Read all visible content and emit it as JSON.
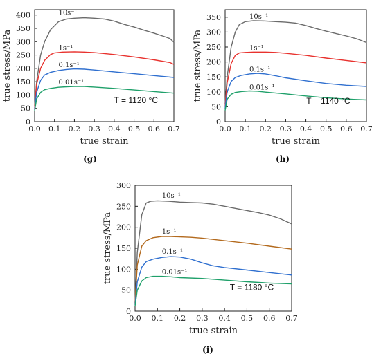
{
  "chart_data": [
    {
      "type": "line",
      "panel_label": "(g)",
      "temperature_label": "T = 1120 °C",
      "xlabel": "true strain",
      "ylabel": "true stress/MPa",
      "xlim": [
        0.0,
        0.7
      ],
      "ylim": [
        0,
        420
      ],
      "xticks": [
        "0.0",
        "0.1",
        "0.2",
        "0.3",
        "0.4",
        "0.5",
        "0.6",
        "0.7"
      ],
      "yticks": [
        "0",
        "50",
        "100",
        "150",
        "200",
        "250",
        "300",
        "350",
        "400"
      ],
      "series": [
        {
          "name": "10s⁻¹",
          "color": "#6b6b6b",
          "x": [
            0.0,
            0.01,
            0.03,
            0.05,
            0.08,
            0.12,
            0.16,
            0.2,
            0.25,
            0.3,
            0.35,
            0.4,
            0.45,
            0.5,
            0.55,
            0.6,
            0.65,
            0.68,
            0.7
          ],
          "y": [
            60,
            150,
            250,
            300,
            345,
            375,
            385,
            388,
            390,
            388,
            385,
            377,
            365,
            355,
            343,
            332,
            320,
            312,
            298
          ]
        },
        {
          "name": "1s⁻¹",
          "color": "#e8322e",
          "x": [
            0.0,
            0.01,
            0.03,
            0.05,
            0.08,
            0.1,
            0.14,
            0.2,
            0.25,
            0.3,
            0.4,
            0.5,
            0.6,
            0.68,
            0.7
          ],
          "y": [
            50,
            140,
            200,
            230,
            252,
            258,
            261,
            262,
            261,
            259,
            252,
            243,
            232,
            222,
            215
          ]
        },
        {
          "name": "0.1s⁻¹",
          "color": "#2f6fcf",
          "x": [
            0.0,
            0.01,
            0.03,
            0.05,
            0.08,
            0.12,
            0.16,
            0.2,
            0.25,
            0.3,
            0.4,
            0.5,
            0.6,
            0.7
          ],
          "y": [
            45,
            110,
            155,
            175,
            185,
            192,
            196,
            198,
            197,
            194,
            187,
            180,
            173,
            166
          ]
        },
        {
          "name": "0.01s⁻¹",
          "color": "#1fa06a",
          "x": [
            0.0,
            0.01,
            0.03,
            0.05,
            0.08,
            0.12,
            0.16,
            0.2,
            0.25,
            0.3,
            0.4,
            0.5,
            0.6,
            0.7
          ],
          "y": [
            40,
            85,
            110,
            120,
            125,
            129,
            131,
            132,
            132,
            130,
            125,
            119,
            113,
            107
          ]
        }
      ]
    },
    {
      "type": "line",
      "panel_label": "(h)",
      "temperature_label": "T = 1140 °C",
      "xlabel": "true strain",
      "ylabel": "true stress/MPa",
      "xlim": [
        0.0,
        0.7
      ],
      "ylim": [
        0,
        375
      ],
      "xticks": [
        "0.0",
        "0.1",
        "0.2",
        "0.3",
        "0.4",
        "0.5",
        "0.6",
        "0.7"
      ],
      "yticks": [
        "0",
        "50",
        "100",
        "150",
        "200",
        "250",
        "300",
        "350"
      ],
      "series": [
        {
          "name": "10s⁻¹",
          "color": "#6b6b6b",
          "x": [
            0.0,
            0.01,
            0.03,
            0.05,
            0.07,
            0.1,
            0.14,
            0.2,
            0.25,
            0.3,
            0.35,
            0.4,
            0.45,
            0.5,
            0.55,
            0.6,
            0.65,
            0.7
          ],
          "y": [
            60,
            150,
            250,
            300,
            325,
            335,
            338,
            337,
            335,
            333,
            330,
            322,
            312,
            303,
            295,
            287,
            278,
            265
          ]
        },
        {
          "name": "1s⁻¹",
          "color": "#e8322e",
          "x": [
            0.0,
            0.01,
            0.03,
            0.05,
            0.07,
            0.1,
            0.14,
            0.2,
            0.25,
            0.3,
            0.4,
            0.5,
            0.6,
            0.7
          ],
          "y": [
            50,
            130,
            195,
            222,
            230,
            232,
            233,
            233,
            232,
            229,
            222,
            213,
            205,
            197
          ]
        },
        {
          "name": "0.1s⁻¹",
          "color": "#2f6fcf",
          "x": [
            0.0,
            0.01,
            0.03,
            0.05,
            0.08,
            0.12,
            0.16,
            0.2,
            0.25,
            0.3,
            0.4,
            0.5,
            0.6,
            0.7
          ],
          "y": [
            45,
            100,
            135,
            148,
            155,
            160,
            162,
            160,
            154,
            147,
            137,
            128,
            122,
            118
          ]
        },
        {
          "name": "0.01s⁻¹",
          "color": "#1fa06a",
          "x": [
            0.0,
            0.01,
            0.03,
            0.05,
            0.08,
            0.12,
            0.16,
            0.2,
            0.3,
            0.4,
            0.5,
            0.6,
            0.7
          ],
          "y": [
            38,
            75,
            92,
            98,
            101,
            103,
            102,
            99,
            93,
            86,
            80,
            76,
            73
          ]
        }
      ]
    },
    {
      "type": "line",
      "panel_label": "(i)",
      "temperature_label": "T = 1180 °C",
      "xlabel": "true strain",
      "ylabel": "true stress/MPa",
      "xlim": [
        0.0,
        0.7
      ],
      "ylim": [
        0,
        300
      ],
      "xticks": [
        "0.0",
        "0.1",
        "0.2",
        "0.3",
        "0.4",
        "0.5",
        "0.6",
        "0.7"
      ],
      "yticks": [
        "0",
        "50",
        "100",
        "150",
        "200",
        "250",
        "300"
      ],
      "series": [
        {
          "name": "10s⁻¹",
          "color": "#6b6b6b",
          "x": [
            0.0,
            0.01,
            0.03,
            0.05,
            0.07,
            0.1,
            0.15,
            0.2,
            0.25,
            0.3,
            0.35,
            0.4,
            0.45,
            0.5,
            0.55,
            0.6,
            0.65,
            0.7
          ],
          "y": [
            20,
            140,
            230,
            258,
            262,
            263,
            262,
            260,
            259,
            258,
            255,
            250,
            245,
            240,
            235,
            229,
            220,
            208
          ]
        },
        {
          "name": "1s⁻¹",
          "color": "#b36a1e",
          "x": [
            0.0,
            0.01,
            0.03,
            0.05,
            0.08,
            0.12,
            0.16,
            0.2,
            0.25,
            0.3,
            0.4,
            0.5,
            0.6,
            0.7
          ],
          "y": [
            18,
            110,
            155,
            168,
            175,
            178,
            178,
            177,
            176,
            174,
            168,
            162,
            155,
            148
          ]
        },
        {
          "name": "0.1s⁻¹",
          "color": "#2f6fcf",
          "x": [
            0.0,
            0.01,
            0.03,
            0.05,
            0.08,
            0.12,
            0.16,
            0.2,
            0.25,
            0.3,
            0.35,
            0.4,
            0.5,
            0.6,
            0.7
          ],
          "y": [
            15,
            70,
            105,
            118,
            124,
            128,
            130,
            129,
            124,
            115,
            108,
            104,
            98,
            92,
            86
          ]
        },
        {
          "name": "0.01s⁻¹",
          "color": "#1fa06a",
          "x": [
            0.0,
            0.01,
            0.03,
            0.05,
            0.08,
            0.12,
            0.16,
            0.2,
            0.3,
            0.4,
            0.5,
            0.6,
            0.7
          ],
          "y": [
            12,
            50,
            72,
            80,
            83,
            83,
            82,
            80,
            78,
            74,
            70,
            67,
            65
          ]
        }
      ]
    }
  ]
}
